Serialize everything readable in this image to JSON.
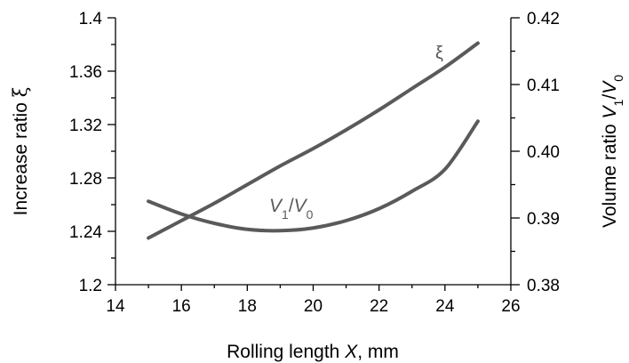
{
  "chart_data": {
    "type": "line",
    "xlabel": "Rolling length X,  mm",
    "xlabel_parts": {
      "pre": "Rolling length ",
      "var": "X",
      "post": ",  mm"
    },
    "ylabel_left": "Increase ratio ξ",
    "ylabel_left_parts": {
      "pre": "Increase ratio ",
      "var": "ξ"
    },
    "ylabel_right": "Volume ratio V1/V0",
    "ylabel_right_parts": {
      "pre": "Volume ratio ",
      "v1": "V",
      "s1": "1",
      "slash": "/",
      "v0": "V",
      "s0": "0"
    },
    "xlim": [
      14,
      26
    ],
    "ylim_left": [
      1.2,
      1.4
    ],
    "ylim_right": [
      0.38,
      0.42
    ],
    "x_ticks": [
      "14",
      "16",
      "18",
      "20",
      "22",
      "24",
      "26"
    ],
    "y_left_ticks": [
      "1.2",
      "1.24",
      "1.28",
      "1.32",
      "1.36",
      "1.4"
    ],
    "y_right_ticks": [
      "0.38",
      "0.39",
      "0.40",
      "0.41",
      "0.42"
    ],
    "grid": false,
    "series": [
      {
        "name": "ξ",
        "axis": "left",
        "x": [
          15,
          16,
          17,
          18,
          19,
          20,
          21,
          22,
          23,
          24,
          25
        ],
        "y": [
          1.235,
          1.248,
          1.261,
          1.275,
          1.289,
          1.302,
          1.316,
          1.331,
          1.347,
          1.363,
          1.381
        ],
        "color": "#5a5a5a"
      },
      {
        "name": "V1/V0",
        "axis": "right",
        "x": [
          15,
          16,
          17,
          18,
          19,
          20,
          21,
          22,
          23,
          24,
          25
        ],
        "y": [
          0.3925,
          0.3906,
          0.3892,
          0.3883,
          0.3881,
          0.3885,
          0.3896,
          0.3914,
          0.394,
          0.3973,
          0.4045
        ],
        "color": "#5a5a5a"
      }
    ],
    "series_labels": {
      "xi": "ξ",
      "v_parts": {
        "v1": "V",
        "s1": "1",
        "slash": "/",
        "v0": "V",
        "s0": "0"
      }
    }
  }
}
